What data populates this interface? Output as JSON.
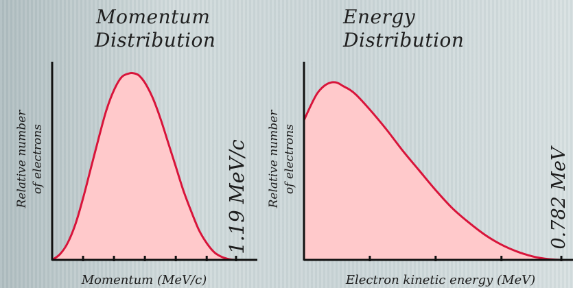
{
  "chart_data": [
    {
      "type": "area",
      "title_line1": "Momentum",
      "title_line2": "Distribution",
      "xlabel": "Momentum (MeV/c)",
      "ylabel_line1": "Relative number",
      "ylabel_line2": "of electrons",
      "endpoint_label": "1.19 MeV/c",
      "endpoint": 1.19,
      "xlim": [
        0,
        1.19
      ],
      "ylim": [
        0,
        1.0
      ],
      "x_ticks": [
        0.2,
        0.4,
        0.6,
        0.8,
        1.0
      ],
      "x": [
        0,
        0.05,
        0.1,
        0.15,
        0.2,
        0.25,
        0.3,
        0.35,
        0.4,
        0.45,
        0.5,
        0.53,
        0.56,
        0.6,
        0.65,
        0.7,
        0.75,
        0.8,
        0.85,
        0.9,
        0.95,
        1.0,
        1.05,
        1.1,
        1.15,
        1.19
      ],
      "y": [
        0,
        0.03,
        0.09,
        0.19,
        0.33,
        0.49,
        0.65,
        0.8,
        0.91,
        0.98,
        1.0,
        1.0,
        0.99,
        0.95,
        0.87,
        0.76,
        0.63,
        0.5,
        0.37,
        0.26,
        0.16,
        0.09,
        0.04,
        0.015,
        0.003,
        0
      ],
      "fill_color": "#ffc9cb",
      "line_color": "#d8143a"
    },
    {
      "type": "area",
      "title_line1": "Energy",
      "title_line2": "Distribution",
      "xlabel": "Electron kinetic energy (MeV)",
      "ylabel_line1": "Relative number",
      "ylabel_line2": "of electrons",
      "endpoint_label": "0.782 MeV",
      "endpoint": 0.782,
      "xlim": [
        0,
        0.782
      ],
      "ylim": [
        0,
        1.0
      ],
      "x_ticks": [
        0.2,
        0.4,
        0.6
      ],
      "x": [
        0,
        0.02,
        0.04,
        0.06,
        0.08,
        0.1,
        0.12,
        0.14,
        0.16,
        0.2,
        0.25,
        0.3,
        0.35,
        0.4,
        0.45,
        0.5,
        0.55,
        0.6,
        0.65,
        0.7,
        0.74,
        0.76,
        0.782
      ],
      "y": [
        0.78,
        0.86,
        0.93,
        0.97,
        0.99,
        0.99,
        0.97,
        0.95,
        0.92,
        0.84,
        0.73,
        0.61,
        0.5,
        0.39,
        0.29,
        0.21,
        0.14,
        0.085,
        0.045,
        0.017,
        0.005,
        0.002,
        0
      ],
      "fill_color": "#ffc9cb",
      "line_color": "#d8143a"
    }
  ]
}
